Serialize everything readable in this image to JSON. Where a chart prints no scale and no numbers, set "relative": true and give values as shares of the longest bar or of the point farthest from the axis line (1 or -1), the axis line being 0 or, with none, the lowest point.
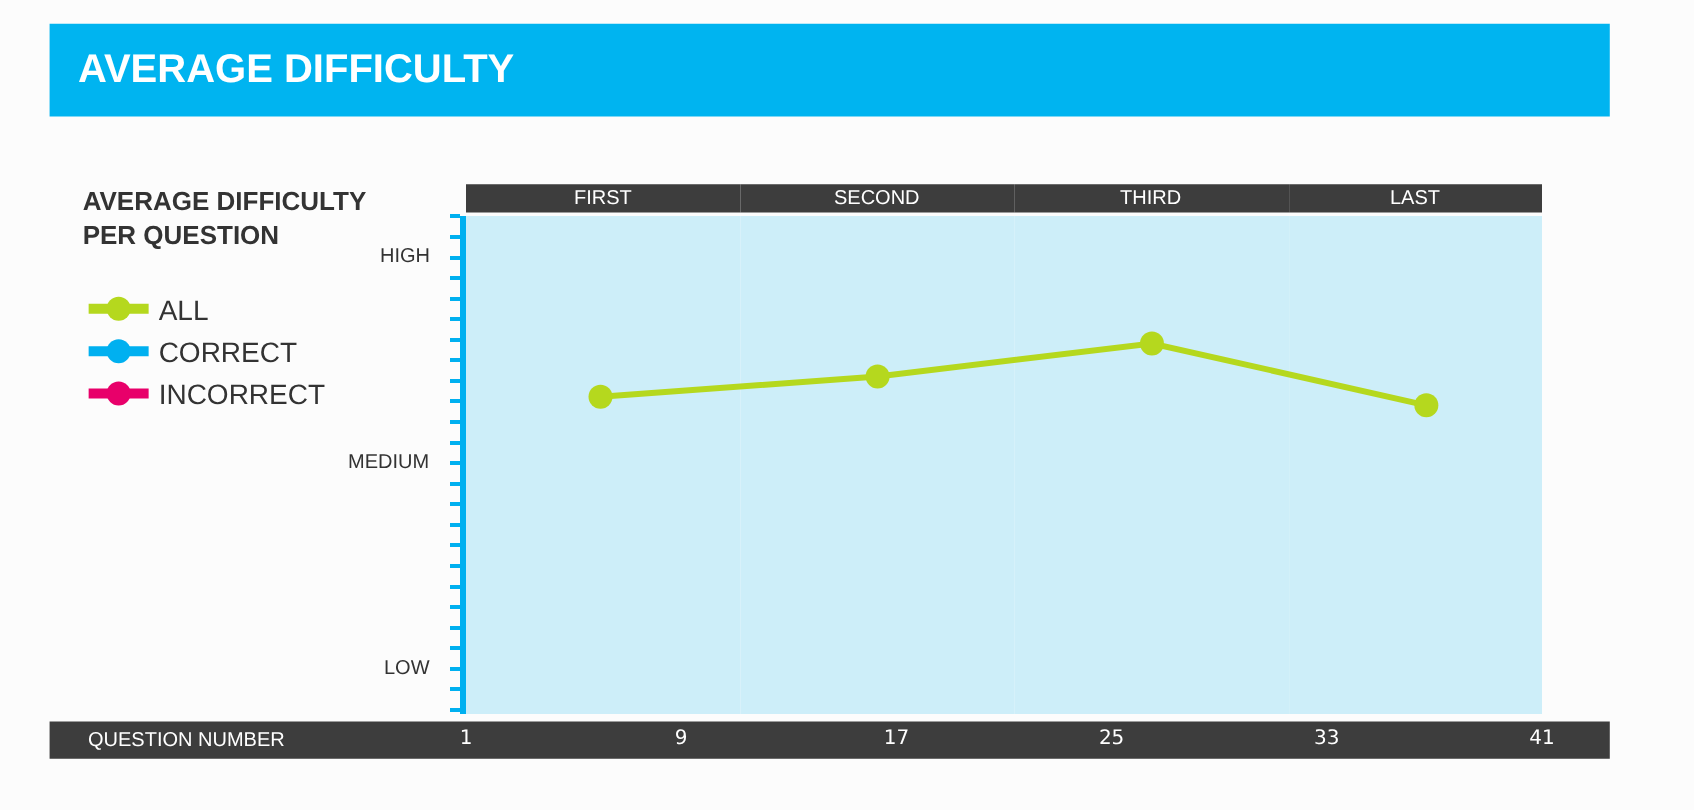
{
  "chart_data": {
    "type": "line",
    "title": "AVERAGE DIFFICULTY",
    "legend_title": "AVERAGE DIFFICULTY\nPER QUESTION",
    "relative": true,
    "x": [
      6,
      16.3,
      26.5,
      36.7
    ],
    "series": [
      {
        "name": "ALL",
        "color": "#b5d81e",
        "values": [
          0.856,
          0.911,
          1,
          0.833
        ]
      },
      {
        "name": "CORRECT",
        "color": "#00b0f0",
        "values": [
          null,
          null,
          null,
          null
        ]
      },
      {
        "name": "INCORRECT",
        "color": "#e8006a",
        "values": [
          null,
          null,
          null,
          null
        ]
      }
    ],
    "annotations": [
      "HIGH",
      "MEDIUM",
      "LOW",
      "QUESTION NUMBER"
    ],
    "xlim": [
      1,
      41
    ],
    "xticks": [
      1,
      9,
      17,
      25,
      33,
      41
    ],
    "bands": [
      {
        "axis": "x",
        "from": 1,
        "to": 11.2,
        "label": "FIRST",
        "color": "#cdeef9"
      },
      {
        "axis": "x",
        "from": 11.2,
        "to": 21.4,
        "label": "SECOND",
        "color": "#cdeef9"
      },
      {
        "axis": "x",
        "from": 21.4,
        "to": 31.6,
        "label": "THIRD",
        "color": "#cdeef9"
      },
      {
        "axis": "x",
        "from": 31.6,
        "to": 41,
        "label": "LAST",
        "color": "#cdeef9"
      }
    ],
    "grid": false,
    "legend": "left",
    "marker": "circle",
    "line_style": "solid"
  }
}
